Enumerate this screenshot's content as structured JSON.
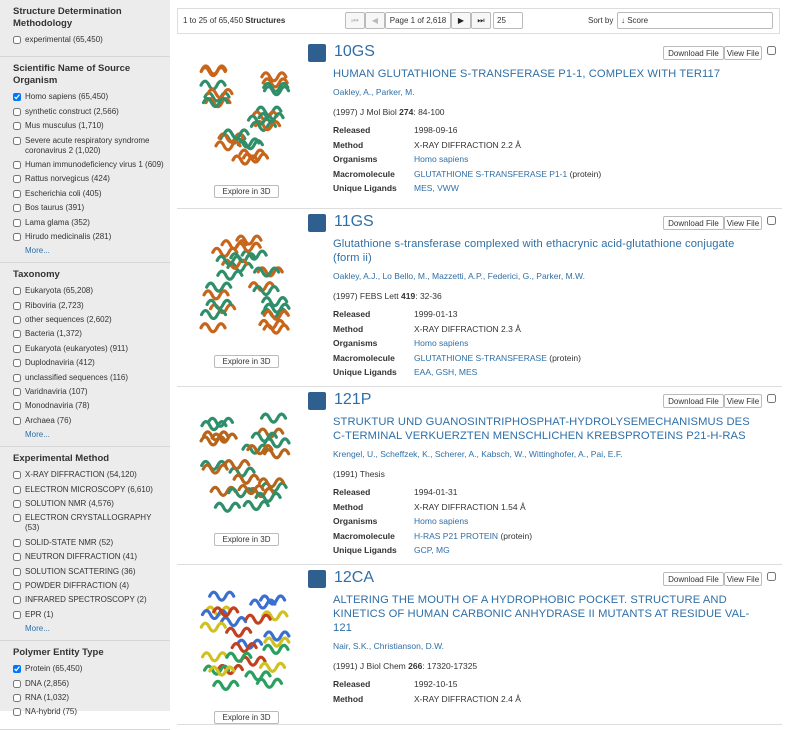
{
  "sidebar": {
    "facets": [
      {
        "title": "Structure Determination Methodology",
        "items": [
          {
            "label": "experimental (65,450)",
            "checked": false
          }
        ]
      },
      {
        "title": "Scientific Name of Source Organism",
        "items": [
          {
            "label": "Homo sapiens (65,450)",
            "checked": true
          },
          {
            "label": "synthetic construct (2,566)",
            "checked": false
          },
          {
            "label": "Mus musculus (1,710)",
            "checked": false
          },
          {
            "label": "Severe acute respiratory syndrome coronavirus 2 (1,020)",
            "checked": false
          },
          {
            "label": "Human immunodeficiency virus 1 (609)",
            "checked": false
          },
          {
            "label": "Rattus norvegicus (424)",
            "checked": false
          },
          {
            "label": "Escherichia coli (405)",
            "checked": false
          },
          {
            "label": "Bos taurus (391)",
            "checked": false
          },
          {
            "label": "Lama glama (352)",
            "checked": false
          },
          {
            "label": "Hirudo medicinalis (281)",
            "checked": false
          }
        ],
        "more": "More..."
      },
      {
        "title": "Taxonomy",
        "items": [
          {
            "label": "Eukaryota (65,208)",
            "checked": false
          },
          {
            "label": "Riboviria (2,723)",
            "checked": false
          },
          {
            "label": "other sequences (2,602)",
            "checked": false
          },
          {
            "label": "Bacteria (1,372)",
            "checked": false
          },
          {
            "label": "Eukaryota (eukaryotes) (911)",
            "checked": false
          },
          {
            "label": "Duplodnaviria (412)",
            "checked": false
          },
          {
            "label": "unclassified sequences (116)",
            "checked": false
          },
          {
            "label": "Varidnaviria (107)",
            "checked": false
          },
          {
            "label": "Monodnaviria (78)",
            "checked": false
          },
          {
            "label": "Archaea (76)",
            "checked": false
          }
        ],
        "more": "More..."
      },
      {
        "title": "Experimental Method",
        "items": [
          {
            "label": "X-RAY DIFFRACTION (54,120)",
            "checked": false
          },
          {
            "label": "ELECTRON MICROSCOPY (6,610)",
            "checked": false
          },
          {
            "label": "SOLUTION NMR (4,576)",
            "checked": false
          },
          {
            "label": "ELECTRON CRYSTALLOGRAPHY (53)",
            "checked": false
          },
          {
            "label": "SOLID-STATE NMR (52)",
            "checked": false
          },
          {
            "label": "NEUTRON DIFFRACTION (41)",
            "checked": false
          },
          {
            "label": "SOLUTION SCATTERING (36)",
            "checked": false
          },
          {
            "label": "POWDER DIFFRACTION (4)",
            "checked": false
          },
          {
            "label": "INFRARED SPECTROSCOPY (2)",
            "checked": false
          },
          {
            "label": "EPR (1)",
            "checked": false
          }
        ],
        "more": "More..."
      },
      {
        "title": "Polymer Entity Type",
        "items": [
          {
            "label": "Protein (65,450)",
            "checked": true
          },
          {
            "label": "DNA (2,856)",
            "checked": false
          },
          {
            "label": "RNA (1,032)",
            "checked": false
          },
          {
            "label": "NA-hybrid (75)",
            "checked": false
          }
        ]
      }
    ]
  },
  "toolbar": {
    "count_prefix": "1 to 25 of 65,450",
    "count_noun": "Structures",
    "page": "Page 1 of 2,618",
    "per_page": "25",
    "sort_label": "Sort by",
    "sort_value": "↓ Score"
  },
  "buttons": {
    "download": "Download File",
    "view": "View File",
    "explore": "Explore in 3D"
  },
  "results": [
    {
      "id": "10GS",
      "title": "HUMAN GLUTATHIONE S-TRANSFERASE P1-1, COMPLEX WITH TER117",
      "authors": "Oakley, A., Parker, M.",
      "citation": {
        "prefix": "(1997) J Mol Biol",
        "volume": "274",
        "suffix": ": 84-100"
      },
      "fields": [
        {
          "label": "Released",
          "value": "1998-09-16"
        },
        {
          "label": "Method",
          "value": "X-RAY DIFFRACTION 2.2 Å"
        },
        {
          "label": "Organisms",
          "link": "Homo sapiens"
        },
        {
          "label": "Macromolecule",
          "link": "GLUTATHIONE S-TRANSFERASE P1-1",
          "suffix": "(protein)"
        },
        {
          "label": "Unique Ligands",
          "link": "MES, VWW"
        }
      ]
    },
    {
      "id": "11GS",
      "title": "Glutathione s-transferase complexed with ethacrynic acid-glutathione conjugate (form ii)",
      "authors": "Oakley, A.J., Lo Bello, M., Mazzetti, A.P., Federici, G., Parker, M.W.",
      "citation": {
        "prefix": "(1997) FEBS Lett",
        "volume": "419",
        "suffix": ": 32-36"
      },
      "fields": [
        {
          "label": "Released",
          "value": "1999-01-13"
        },
        {
          "label": "Method",
          "value": "X-RAY DIFFRACTION 2.3 Å"
        },
        {
          "label": "Organisms",
          "link": "Homo sapiens"
        },
        {
          "label": "Macromolecule",
          "link": "GLUTATHIONE S-TRANSFERASE",
          "suffix": "(protein)"
        },
        {
          "label": "Unique Ligands",
          "link": "EAA, GSH, MES"
        }
      ]
    },
    {
      "id": "121P",
      "title": "STRUKTUR UND GUANOSINTRIPHOSPHAT-HYDROLYSEMECHANISMUS DES C-TERMINAL VERKUERZTEN MENSCHLICHEN KREBSPROTEINS P21-H-RAS",
      "authors": "Krengel, U., Scheffzek, K., Scherer, A., Kabsch, W., Wittinghofer, A., Pai, E.F.",
      "citation": {
        "prefix": "(1991) Thesis"
      },
      "fields": [
        {
          "label": "Released",
          "value": "1994-01-31"
        },
        {
          "label": "Method",
          "value": "X-RAY DIFFRACTION 1.54 Å"
        },
        {
          "label": "Organisms",
          "link": "Homo sapiens"
        },
        {
          "label": "Macromolecule",
          "link": "H-RAS P21 PROTEIN",
          "suffix": "(protein)"
        },
        {
          "label": "Unique Ligands",
          "link": "GCP, MG"
        }
      ]
    },
    {
      "id": "12CA",
      "title": "ALTERING THE MOUTH OF A HYDROPHOBIC POCKET. STRUCTURE AND KINETICS OF HUMAN CARBONIC ANHYDRASE II MUTANTS AT RESIDUE VAL-121",
      "authors": "Nair, S.K., Christianson, D.W.",
      "citation": {
        "prefix": "(1991) J Biol Chem",
        "volume": "266",
        "suffix": ": 17320-17325"
      },
      "fields": [
        {
          "label": "Released",
          "value": "1992-10-15"
        },
        {
          "label": "Method",
          "value": "X-RAY DIFFRACTION 2.4 Å"
        }
      ]
    }
  ]
}
